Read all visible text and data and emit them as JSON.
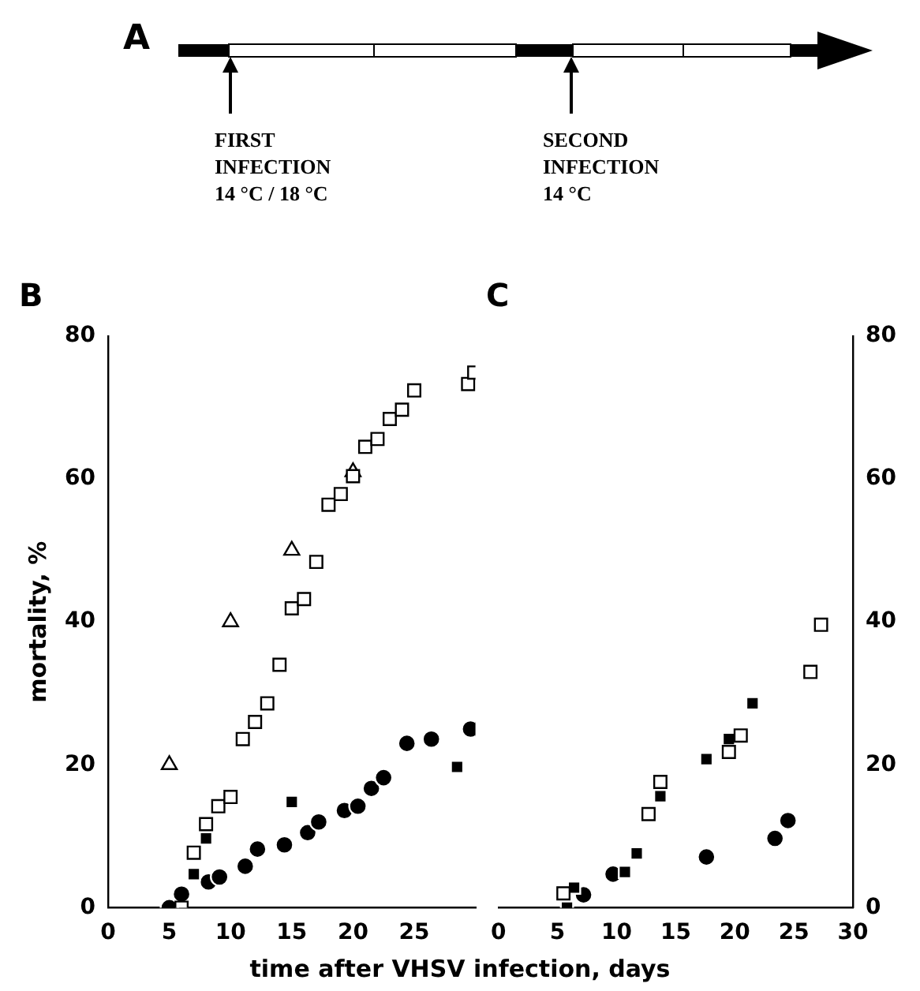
{
  "chart_data": [
    {
      "type": "scatter",
      "title": "B",
      "xlabel": "time after VHSV infection, days",
      "ylabel": "mortality, %",
      "annotations": [
        "A",
        "FIRST\nINFECTION\n14 °C / 18 °C",
        "SECOND\nINFECTION\n14 °C"
      ],
      "xlim": [
        0,
        30
      ],
      "xticks": [
        0,
        5,
        10,
        15,
        20,
        25
      ],
      "ylim": [
        0,
        80
      ],
      "yticks": [
        0,
        20,
        40,
        60,
        80
      ],
      "grid": false,
      "legend": false,
      "series": [
        {
          "marker": "square",
          "color": "#ffffff",
          "x": [
            6,
            7,
            8,
            9,
            10,
            11,
            12,
            13,
            14,
            15,
            16,
            17,
            18,
            19,
            20,
            21,
            22,
            23,
            24,
            25,
            29.4,
            29.9
          ],
          "values": [
            0,
            7.7,
            11.7,
            14.2,
            15.5,
            23.6,
            26,
            28.6,
            34,
            41.9,
            43.2,
            48.4,
            56.4,
            57.9,
            60.4,
            64.5,
            65.6,
            68.4,
            69.7,
            72.4,
            73.3,
            74.9
          ]
        },
        {
          "marker": "triangle",
          "color": "#ffffff",
          "x": [
            5,
            10,
            15,
            20
          ],
          "values": [
            20,
            40,
            50,
            61
          ]
        },
        {
          "marker": "square",
          "color": "#000000",
          "x": [
            7,
            8,
            15,
            28.5
          ],
          "values": [
            4.7,
            9.7,
            14.8,
            19.7
          ]
        },
        {
          "marker": "circle",
          "color": "#000000",
          "x": [
            5,
            6,
            8.2,
            9.1,
            11.2,
            12.2,
            14.4,
            16.3,
            17.2,
            19.3,
            20.4,
            21.5,
            22.5,
            24.4,
            26.4,
            29.6
          ],
          "values": [
            0,
            1.9,
            3.6,
            4.3,
            5.8,
            8.2,
            8.8,
            10.5,
            12,
            13.6,
            14.2,
            16.7,
            18.2,
            23,
            23.6,
            25
          ]
        }
      ]
    },
    {
      "type": "scatter",
      "title": "C",
      "xlim": [
        0,
        30
      ],
      "xticks": [
        0,
        5,
        10,
        15,
        20,
        25,
        30
      ],
      "ylim": [
        0,
        80
      ],
      "yticks": [
        0,
        20,
        40,
        60,
        80
      ],
      "grid": false,
      "legend": false,
      "series": [
        {
          "marker": "square",
          "color": "#ffffff",
          "x": [
            5.5,
            12.7,
            13.7,
            19.5,
            20.5,
            26.4,
            27.3
          ],
          "values": [
            2,
            13.1,
            17.6,
            21.8,
            24.1,
            33,
            39.6
          ]
        },
        {
          "marker": "square",
          "color": "#000000",
          "x": [
            5.8,
            6.4,
            10.7,
            11.7,
            13.7,
            17.6,
            19.5,
            21.5
          ],
          "values": [
            0,
            2.8,
            5,
            7.6,
            15.6,
            20.8,
            23.6,
            28.6
          ]
        },
        {
          "marker": "circle",
          "color": "#000000",
          "x": [
            7.2,
            9.7,
            17.6,
            23.4,
            24.5
          ],
          "values": [
            1.8,
            4.7,
            7.1,
            9.7,
            12.2
          ]
        }
      ]
    }
  ]
}
